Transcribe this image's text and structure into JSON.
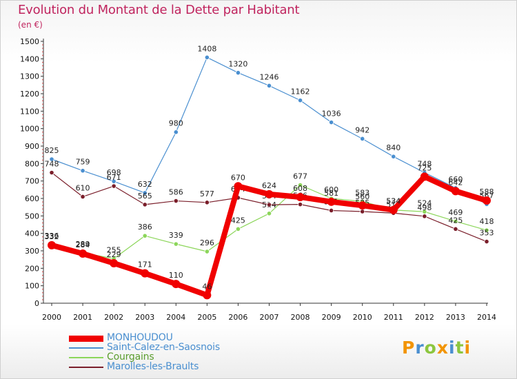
{
  "header": {
    "title": "Evolution du Montant de la Dette par Habitant",
    "subtitle": "(en €)"
  },
  "brand": {
    "letters": [
      "P",
      "r",
      "o",
      "x",
      "i",
      "t",
      "i"
    ],
    "colors": [
      "#f29400",
      "#4a8fd0",
      "#8cc63f",
      "#f29400",
      "#4a8fd0",
      "#8cc63f",
      "#f29400"
    ]
  },
  "chart_data": {
    "type": "line",
    "title": "Evolution du Montant de la Dette par Habitant",
    "subtitle": "(en €)",
    "x": [
      "2000",
      "2001",
      "2002",
      "2003",
      "2004",
      "2005",
      "2006",
      "2007",
      "2008",
      "2009",
      "2010",
      "2011",
      "2012",
      "2013",
      "2014"
    ],
    "yticks": [
      0,
      100,
      200,
      300,
      400,
      500,
      600,
      700,
      800,
      900,
      1000,
      1100,
      1200,
      1300,
      1400,
      1500
    ],
    "ylim": [
      0,
      1500
    ],
    "grid": false,
    "legend_position": "bottom-left",
    "series": [
      {
        "name": "Saint-Calez-en-Saosnois",
        "color": "#4a8fd0",
        "values": [
          825,
          759,
          698,
          632,
          980,
          1408,
          1320,
          1246,
          1162,
          1036,
          942,
          840,
          748,
          660,
          567
        ]
      },
      {
        "name": "Courgains",
        "color": "#8cd65a",
        "values": [
          336,
          289,
          255,
          386,
          339,
          296,
          425,
          514,
          677,
          600,
          583,
          534,
          524,
          469,
          418
        ]
      },
      {
        "name": "Marolles-les-Braults",
        "color": "#7a1e2a",
        "values": [
          748,
          610,
          671,
          565,
          586,
          577,
          604,
          564,
          566,
          531,
          525,
          516,
          498,
          425,
          353
        ]
      },
      {
        "name": "MONHOUDOU",
        "color": "#f00000",
        "values": [
          332,
          284,
          229,
          171,
          110,
          46,
          670,
          624,
          608,
          581,
          560,
          534,
          725,
          642,
          588
        ]
      }
    ]
  }
}
